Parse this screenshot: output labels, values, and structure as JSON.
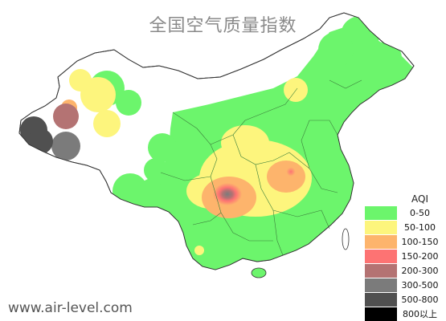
{
  "title": "全国空气质量指数",
  "watermark": "www.air-level.com",
  "legend": {
    "title": "AQI",
    "items": [
      {
        "label": "0-50",
        "color": "#6cf56c"
      },
      {
        "label": "50-100",
        "color": "#fdf57d"
      },
      {
        "label": "100-150",
        "color": "#fdb46c"
      },
      {
        "label": "150-200",
        "color": "#fd7373"
      },
      {
        "label": "200-300",
        "color": "#b47373"
      },
      {
        "label": "300-500",
        "color": "#7b7b7b"
      },
      {
        "label": "500-800",
        "color": "#505050"
      },
      {
        "label": "800以上",
        "color": "#000000"
      }
    ]
  },
  "colors": {
    "border": "#333333",
    "province_line": "#3c7f3c",
    "background": "#ffffff"
  }
}
